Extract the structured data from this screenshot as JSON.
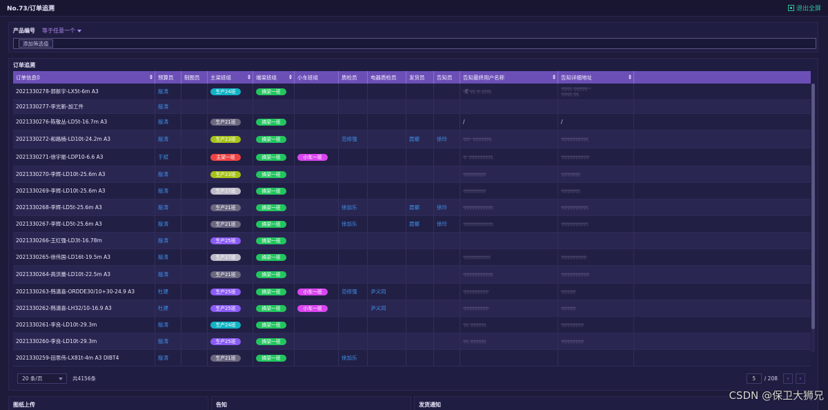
{
  "header": {
    "title": "No.73/订单追溯",
    "exit_label": "退出全屏"
  },
  "filter": {
    "field_label": "产品编号",
    "operator": "等于任意一个",
    "add_label": "添加筛选值"
  },
  "panel": {
    "title": "订单追溯"
  },
  "columns": [
    "订单信息0",
    "预算员",
    "制图员",
    "主梁班组",
    "端梁班组",
    "小车班组",
    "质检员",
    "电器质检员",
    "发货员",
    "告知员",
    "告知最终用户名称",
    "告知详细地址"
  ],
  "colors": {
    "green": "#22c55e",
    "teal": "#10b3c4",
    "gray": "#6b6880",
    "lime": "#a6c218",
    "red": "#ef4444",
    "silver": "#bdbbc8",
    "purple": "#8b5cf6",
    "magenta": "#d946ef",
    "link": "#3d8fe6"
  },
  "rows": [
    {
      "order": "2021330278-郭新宇-LX5t-6m A3",
      "budget": "殷涛",
      "main": {
        "text": "生产24班",
        "color": "teal"
      },
      "end": {
        "text": "搞梁一班",
        "color": "green"
      },
      "cust": "·:\\' ·:·: ·:· :·:·:·:",
      "addr": "·:·:·:·: ·:·:·:·:·:· ·\n·:·:·:·: ·:·:"
    },
    {
      "order": "2021330277-李光新-加工件",
      "budget": "殷涛"
    },
    {
      "order": "2021330276-陈敬丛-LD5t-16.7m A3",
      "budget": "殷涛",
      "main": {
        "text": "生产21班",
        "color": "gray"
      },
      "end": {
        "text": "搞梁一班",
        "color": "green"
      },
      "cust": "/",
      "addr": "/"
    },
    {
      "order": "2021330272-和路楠-LD10t-24.2m A3",
      "budget": "殷涛",
      "main": {
        "text": "生产23班",
        "color": "lime"
      },
      "end": {
        "text": "搞梁一班",
        "color": "green"
      },
      "qc": "范修强",
      "ship": "聂娜",
      "notify": "徐玲",
      "cust": "·:·:·· ·:·:·:·:·:·:·:",
      "addr": "·:·:·:·:·:·:·:·:·:·:"
    },
    {
      "order": "2021330271-徐宇振-LDP10-6.6 A3",
      "budget": "于斌",
      "main": {
        "text": "主梁一班",
        "color": "red"
      },
      "end": {
        "text": "搞梁一班",
        "color": "green"
      },
      "trolley": {
        "text": "小车一班",
        "color": "magenta"
      },
      "cust": "·:· ·:·:·:·:·:·:·:·:·:",
      "addr": "·:·:·:·:·:·:·:·:·:·:·"
    },
    {
      "order": "2021330270-李辉-LD10t-25.6m A3",
      "budget": "殷涛",
      "main": {
        "text": "生产23班",
        "color": "lime"
      },
      "end": {
        "text": "搞梁一班",
        "color": "green"
      },
      "cust": "·:·:·:·:·:·:·:·:·",
      "addr": "·:·:·:·:·:·:·:"
    },
    {
      "order": "2021330269-李辉-LD10t-25.6m A3",
      "budget": "殷涛",
      "main": {
        "text": "生产27班",
        "color": "silver"
      },
      "end": {
        "text": "搞梁一班",
        "color": "green"
      },
      "cust": "·:·:·:·:·:·:·:·:·",
      "addr": "·:·:·:·:·:·:·:"
    },
    {
      "order": "2021330268-李辉-LD5t-25.6m A3",
      "budget": "殷涛",
      "main": {
        "text": "生产21班",
        "color": "gray"
      },
      "end": {
        "text": "搞梁一班",
        "color": "green"
      },
      "qc": "徐加乐",
      "ship": "聂娜",
      "notify": "徐玲",
      "cust": "·:·:·:·:·:·:·:·:·:·:·:",
      "addr": "·:·:·:·:·:·:·:·:·:·:"
    },
    {
      "order": "2021330267-李辉-LD5t-25.6m A3",
      "budget": "殷涛",
      "main": {
        "text": "生产21班",
        "color": "gray"
      },
      "end": {
        "text": "搞梁一班",
        "color": "green"
      },
      "qc": "徐加乐",
      "ship": "聂娜",
      "notify": "徐玲",
      "cust": "·:·:·:·:·:·:·:·:·:·:·:",
      "addr": "·:·:·:·:·:·:·:·:·:·:"
    },
    {
      "order": "2021330266-王红强-LD3t-16.78m",
      "budget": "殷涛",
      "main": {
        "text": "生产25班",
        "color": "purple"
      },
      "end": {
        "text": "搞梁一班",
        "color": "green"
      }
    },
    {
      "order": "2021330265-徐伟国-LD16t-19.5m A3",
      "budget": "殷涛",
      "main": {
        "text": "生产27班",
        "color": "silver"
      },
      "end": {
        "text": "搞梁一班",
        "color": "green"
      },
      "cust": "·:·:·:·:·:·:·:·:·:·:",
      "addr": "·:·:·:·:·:·:·:·:·:·"
    },
    {
      "order": "2021330264-高洪蕾-LD10t-22.5m A3",
      "budget": "殷涛",
      "main": {
        "text": "生产21班",
        "color": "gray"
      },
      "end": {
        "text": "搞梁一班",
        "color": "green"
      },
      "cust": "·:·:·:·:·:·:·:·:·:·:·:",
      "addr": "·:·:·:·:·:·:·:·:·:·:·"
    },
    {
      "order": "2021330263-韩潇喜-ORDDE30/10+30-24.9 A3",
      "budget": "杜建",
      "main": {
        "text": "生产25班",
        "color": "purple"
      },
      "end": {
        "text": "搞梁一班",
        "color": "green"
      },
      "trolley": {
        "text": "小车一班",
        "color": "magenta"
      },
      "qc": "范修强",
      "eqc": "尹义同",
      "cust": "·:·:·:·:·:·:·:·:·:·",
      "addr": "·:·:·:·:·:·"
    },
    {
      "order": "2021330262-韩潇喜-LH32/10-16.9 A3",
      "budget": "杜建",
      "main": {
        "text": "生产25班",
        "color": "purple"
      },
      "end": {
        "text": "搞梁一班",
        "color": "green"
      },
      "trolley": {
        "text": "小车一班",
        "color": "magenta"
      },
      "eqc": "尹义同",
      "cust": "·:·:·:·:·:·:·:·:·:·",
      "addr": "·:·:·:·:·:·"
    },
    {
      "order": "2021330261-李良-LD10t-29.3m",
      "budget": "殷涛",
      "main": {
        "text": "生产24班",
        "color": "teal"
      },
      "end": {
        "text": "搞梁一班",
        "color": "green"
      },
      "cust": "·:·: ·:·:·:·:·:·:",
      "addr": "·:·:·:·:·:·:·:·:·"
    },
    {
      "order": "2021330260-李良-LD10t-29.3m",
      "budget": "殷涛",
      "main": {
        "text": "生产25班",
        "color": "purple"
      },
      "end": {
        "text": "搞梁一班",
        "color": "green"
      },
      "cust": "·:·: ·:·:·:·:·:·:",
      "addr": "·:·:·:·:·:·:·:·:·"
    },
    {
      "order": "2021330259-田思伟-LX81t-4m A3 DIBT4",
      "budget": "殷涛",
      "main": {
        "text": "生产21班",
        "color": "gray"
      },
      "end": {
        "text": "搞梁一班",
        "color": "green"
      },
      "qc": "徐加乐"
    }
  ],
  "pagination": {
    "page_size": "20 条/页",
    "total": "共4156条",
    "current": "5",
    "pages": "/ 208",
    "prev": "‹",
    "next": "›"
  },
  "bottom_panels": [
    "图纸上传",
    "告知",
    "发货通知"
  ],
  "watermark": "CSDN @保卫大狮兄"
}
